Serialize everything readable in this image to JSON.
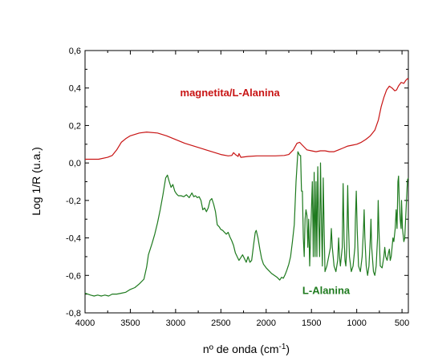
{
  "chart_data": {
    "type": "line",
    "xlabel": "nº de onda (cm",
    "xlabel_sup": "-1",
    "xlabel_close": ")",
    "ylabel": "Log 1/R (u.a.)",
    "xlim": [
      4000,
      430
    ],
    "x_reversed": true,
    "ylim": [
      -0.8,
      0.6
    ],
    "xticks": [
      4000,
      3500,
      3000,
      2500,
      2000,
      1500,
      1000,
      500
    ],
    "xtick_labels": [
      "4000",
      "3500",
      "3000",
      "2500",
      "2000",
      "1500",
      "1000",
      "500"
    ],
    "yticks": [
      -0.8,
      -0.6,
      -0.4,
      -0.2,
      0.0,
      0.2,
      0.4,
      0.6
    ],
    "ytick_labels": [
      "-0,8",
      "-0,6",
      "-0,4",
      "-0,2",
      "0,0",
      "0,2",
      "0,4",
      "0,6"
    ],
    "grid": false,
    "series": [
      {
        "name": "magnetita/L-Alanina",
        "color": "#c81414",
        "points": [
          [
            4000,
            0.02
          ],
          [
            3850,
            0.02
          ],
          [
            3750,
            0.03
          ],
          [
            3700,
            0.04
          ],
          [
            3650,
            0.07
          ],
          [
            3600,
            0.11
          ],
          [
            3550,
            0.13
          ],
          [
            3500,
            0.145
          ],
          [
            3400,
            0.16
          ],
          [
            3320,
            0.165
          ],
          [
            3200,
            0.16
          ],
          [
            3100,
            0.145
          ],
          [
            3000,
            0.125
          ],
          [
            2900,
            0.105
          ],
          [
            2800,
            0.09
          ],
          [
            2700,
            0.075
          ],
          [
            2600,
            0.06
          ],
          [
            2500,
            0.045
          ],
          [
            2420,
            0.038
          ],
          [
            2380,
            0.04
          ],
          [
            2360,
            0.055
          ],
          [
            2340,
            0.045
          ],
          [
            2310,
            0.035
          ],
          [
            2300,
            0.05
          ],
          [
            2280,
            0.03
          ],
          [
            2200,
            0.035
          ],
          [
            2100,
            0.038
          ],
          [
            2000,
            0.038
          ],
          [
            1900,
            0.038
          ],
          [
            1800,
            0.04
          ],
          [
            1750,
            0.045
          ],
          [
            1700,
            0.07
          ],
          [
            1660,
            0.105
          ],
          [
            1630,
            0.11
          ],
          [
            1600,
            0.095
          ],
          [
            1550,
            0.07
          ],
          [
            1500,
            0.065
          ],
          [
            1450,
            0.06
          ],
          [
            1400,
            0.065
          ],
          [
            1350,
            0.065
          ],
          [
            1300,
            0.06
          ],
          [
            1250,
            0.06
          ],
          [
            1200,
            0.07
          ],
          [
            1150,
            0.08
          ],
          [
            1100,
            0.09
          ],
          [
            1050,
            0.095
          ],
          [
            1000,
            0.1
          ],
          [
            950,
            0.11
          ],
          [
            900,
            0.125
          ],
          [
            850,
            0.145
          ],
          [
            800,
            0.175
          ],
          [
            760,
            0.23
          ],
          [
            730,
            0.3
          ],
          [
            700,
            0.35
          ],
          [
            670,
            0.39
          ],
          [
            640,
            0.41
          ],
          [
            610,
            0.4
          ],
          [
            580,
            0.385
          ],
          [
            560,
            0.39
          ],
          [
            540,
            0.41
          ],
          [
            510,
            0.43
          ],
          [
            480,
            0.425
          ],
          [
            460,
            0.44
          ],
          [
            440,
            0.45
          ],
          [
            430,
            0.445
          ]
        ]
      },
      {
        "name": "L-Alanina",
        "color": "#1e7a1e",
        "points": [
          [
            4000,
            -0.695
          ],
          [
            3970,
            -0.7
          ],
          [
            3940,
            -0.705
          ],
          [
            3900,
            -0.71
          ],
          [
            3860,
            -0.705
          ],
          [
            3820,
            -0.71
          ],
          [
            3780,
            -0.705
          ],
          [
            3740,
            -0.71
          ],
          [
            3700,
            -0.7
          ],
          [
            3650,
            -0.7
          ],
          [
            3600,
            -0.695
          ],
          [
            3550,
            -0.69
          ],
          [
            3500,
            -0.675
          ],
          [
            3450,
            -0.665
          ],
          [
            3400,
            -0.645
          ],
          [
            3350,
            -0.62
          ],
          [
            3320,
            -0.555
          ],
          [
            3300,
            -0.49
          ],
          [
            3260,
            -0.43
          ],
          [
            3230,
            -0.38
          ],
          [
            3200,
            -0.32
          ],
          [
            3170,
            -0.25
          ],
          [
            3140,
            -0.17
          ],
          [
            3110,
            -0.08
          ],
          [
            3090,
            -0.065
          ],
          [
            3070,
            -0.1
          ],
          [
            3050,
            -0.13
          ],
          [
            3030,
            -0.115
          ],
          [
            3010,
            -0.15
          ],
          [
            2990,
            -0.165
          ],
          [
            2970,
            -0.175
          ],
          [
            2940,
            -0.175
          ],
          [
            2910,
            -0.18
          ],
          [
            2880,
            -0.17
          ],
          [
            2850,
            -0.185
          ],
          [
            2820,
            -0.16
          ],
          [
            2800,
            -0.18
          ],
          [
            2780,
            -0.175
          ],
          [
            2760,
            -0.185
          ],
          [
            2740,
            -0.18
          ],
          [
            2720,
            -0.2
          ],
          [
            2700,
            -0.25
          ],
          [
            2680,
            -0.24
          ],
          [
            2660,
            -0.26
          ],
          [
            2640,
            -0.24
          ],
          [
            2620,
            -0.2
          ],
          [
            2600,
            -0.19
          ],
          [
            2580,
            -0.22
          ],
          [
            2560,
            -0.26
          ],
          [
            2540,
            -0.33
          ],
          [
            2520,
            -0.34
          ],
          [
            2500,
            -0.355
          ],
          [
            2480,
            -0.36
          ],
          [
            2460,
            -0.37
          ],
          [
            2440,
            -0.38
          ],
          [
            2420,
            -0.37
          ],
          [
            2400,
            -0.395
          ],
          [
            2380,
            -0.415
          ],
          [
            2360,
            -0.44
          ],
          [
            2340,
            -0.48
          ],
          [
            2320,
            -0.5
          ],
          [
            2300,
            -0.52
          ],
          [
            2280,
            -0.505
          ],
          [
            2260,
            -0.49
          ],
          [
            2240,
            -0.51
          ],
          [
            2220,
            -0.53
          ],
          [
            2200,
            -0.5
          ],
          [
            2180,
            -0.53
          ],
          [
            2160,
            -0.52
          ],
          [
            2140,
            -0.44
          ],
          [
            2120,
            -0.37
          ],
          [
            2110,
            -0.36
          ],
          [
            2090,
            -0.4
          ],
          [
            2070,
            -0.46
          ],
          [
            2050,
            -0.51
          ],
          [
            2030,
            -0.54
          ],
          [
            2000,
            -0.56
          ],
          [
            1970,
            -0.575
          ],
          [
            1940,
            -0.59
          ],
          [
            1910,
            -0.6
          ],
          [
            1880,
            -0.61
          ],
          [
            1850,
            -0.625
          ],
          [
            1830,
            -0.61
          ],
          [
            1810,
            -0.615
          ],
          [
            1790,
            -0.595
          ],
          [
            1770,
            -0.57
          ],
          [
            1750,
            -0.54
          ],
          [
            1730,
            -0.5
          ],
          [
            1710,
            -0.42
          ],
          [
            1690,
            -0.33
          ],
          [
            1670,
            -0.1
          ],
          [
            1650,
            0.06
          ],
          [
            1630,
            0.04
          ],
          [
            1620,
            0.04
          ],
          [
            1610,
            -0.15
          ],
          [
            1600,
            -0.15
          ],
          [
            1590,
            -0.4
          ],
          [
            1580,
            -0.5
          ],
          [
            1570,
            -0.3
          ],
          [
            1560,
            -0.25
          ],
          [
            1550,
            -0.28
          ],
          [
            1540,
            -0.45
          ],
          [
            1530,
            -0.3
          ],
          [
            1520,
            -0.55
          ],
          [
            1500,
            -0.25
          ],
          [
            1490,
            -0.1
          ],
          [
            1480,
            -0.5
          ],
          [
            1470,
            -0.05
          ],
          [
            1460,
            -0.5
          ],
          [
            1450,
            -0.1
          ],
          [
            1440,
            -0.5
          ],
          [
            1430,
            -0.02
          ],
          [
            1420,
            -0.3
          ],
          [
            1410,
            -0.5
          ],
          [
            1400,
            0.0
          ],
          [
            1390,
            -0.3
          ],
          [
            1380,
            -0.55
          ],
          [
            1370,
            -0.08
          ],
          [
            1360,
            -0.35
          ],
          [
            1350,
            -0.58
          ],
          [
            1330,
            -0.55
          ],
          [
            1310,
            -0.5
          ],
          [
            1290,
            -0.45
          ],
          [
            1280,
            -0.35
          ],
          [
            1270,
            -0.45
          ],
          [
            1250,
            -0.55
          ],
          [
            1230,
            -0.58
          ],
          [
            1210,
            -0.52
          ],
          [
            1200,
            -0.4
          ],
          [
            1190,
            -0.5
          ],
          [
            1180,
            -0.55
          ],
          [
            1160,
            -0.45
          ],
          [
            1150,
            -0.11
          ],
          [
            1140,
            -0.4
          ],
          [
            1130,
            -0.52
          ],
          [
            1120,
            -0.55
          ],
          [
            1110,
            -0.45
          ],
          [
            1100,
            -0.12
          ],
          [
            1090,
            -0.35
          ],
          [
            1080,
            -0.5
          ],
          [
            1060,
            -0.58
          ],
          [
            1040,
            -0.55
          ],
          [
            1020,
            -0.45
          ],
          [
            1015,
            -0.3
          ],
          [
            1005,
            -0.15
          ],
          [
            995,
            -0.35
          ],
          [
            980,
            -0.55
          ],
          [
            960,
            -0.58
          ],
          [
            940,
            -0.5
          ],
          [
            925,
            -0.35
          ],
          [
            918,
            -0.25
          ],
          [
            910,
            -0.4
          ],
          [
            895,
            -0.55
          ],
          [
            880,
            -0.6
          ],
          [
            865,
            -0.55
          ],
          [
            850,
            -0.4
          ],
          [
            843,
            -0.3
          ],
          [
            835,
            -0.45
          ],
          [
            815,
            -0.58
          ],
          [
            800,
            -0.6
          ],
          [
            785,
            -0.55
          ],
          [
            770,
            -0.4
          ],
          [
            763,
            -0.2
          ],
          [
            755,
            -0.35
          ],
          [
            740,
            -0.55
          ],
          [
            720,
            -0.56
          ],
          [
            700,
            -0.5
          ],
          [
            690,
            -0.45
          ],
          [
            680,
            -0.5
          ],
          [
            665,
            -0.52
          ],
          [
            650,
            -0.48
          ],
          [
            640,
            -0.46
          ],
          [
            630,
            -0.52
          ],
          [
            620,
            -0.5
          ],
          [
            610,
            -0.45
          ],
          [
            600,
            -0.4
          ],
          [
            590,
            -0.42
          ],
          [
            575,
            -0.35
          ],
          [
            565,
            -0.25
          ],
          [
            555,
            -0.35
          ],
          [
            545,
            -0.1
          ],
          [
            538,
            -0.07
          ],
          [
            530,
            -0.2
          ],
          [
            520,
            -0.3
          ],
          [
            510,
            -0.35
          ],
          [
            505,
            -0.2
          ],
          [
            495,
            -0.35
          ],
          [
            480,
            -0.42
          ],
          [
            470,
            -0.4
          ],
          [
            460,
            -0.3
          ],
          [
            450,
            -0.2
          ],
          [
            440,
            -0.09
          ],
          [
            430,
            -0.08
          ]
        ]
      }
    ],
    "annotations": [
      {
        "text": "magnetita/L-Alanina",
        "x": 2950,
        "y": 0.355,
        "color": "#c81414"
      },
      {
        "text": "L-Alanina",
        "x": 1600,
        "y": -0.7,
        "color": "#1e7a1e"
      }
    ]
  }
}
